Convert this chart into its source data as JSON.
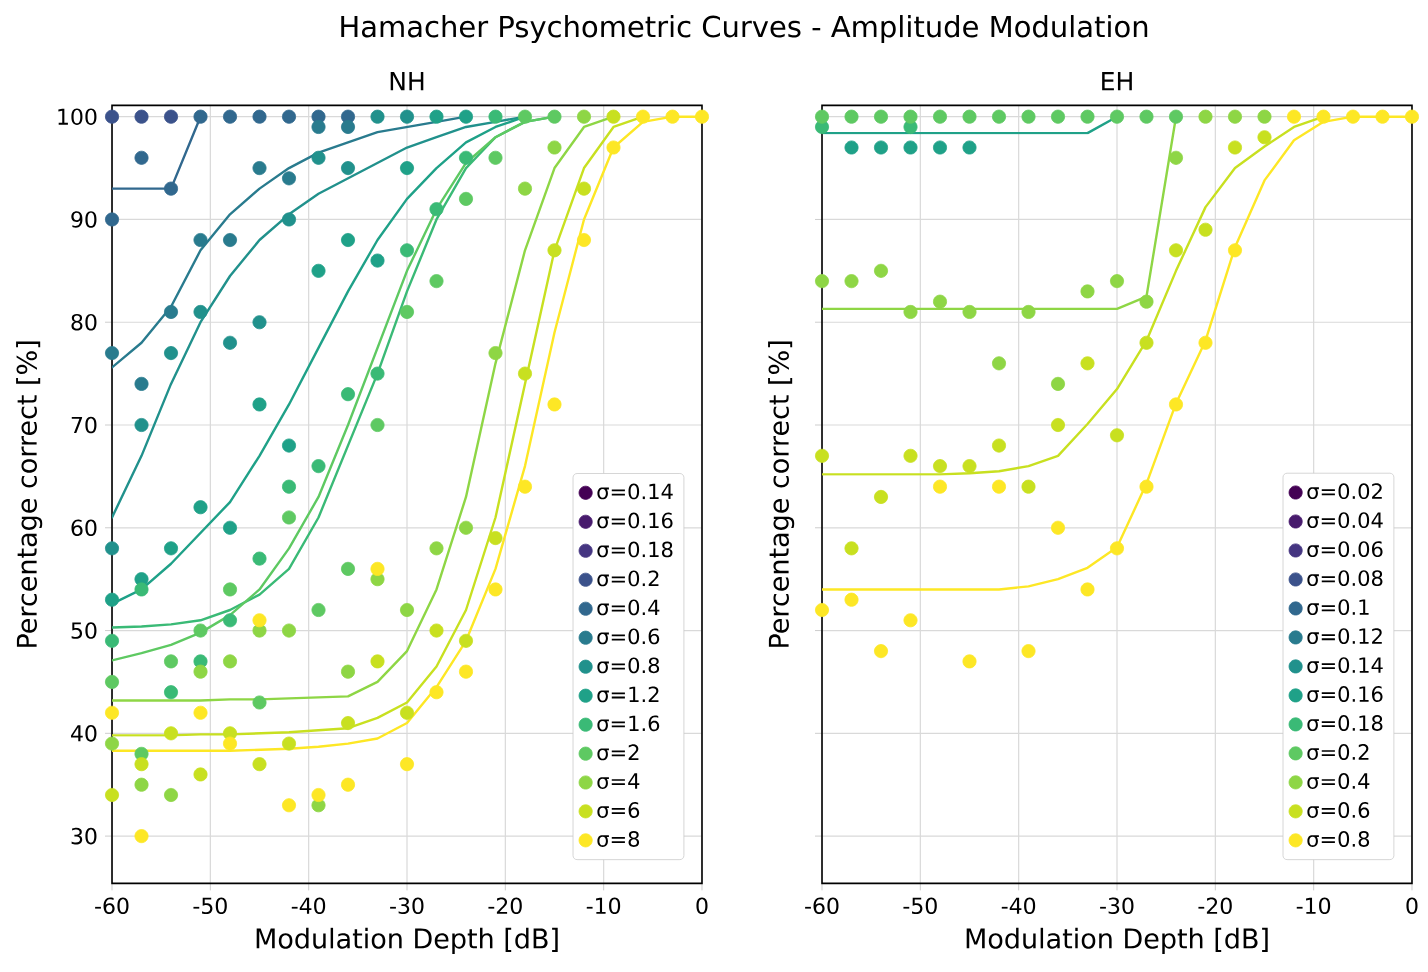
{
  "chart_data": [
    {
      "type": "scatter",
      "title": "Hamacher Psychometric Curves - Amplitude Modulation",
      "subtitle": "NH",
      "xlabel": "Modulation Depth [dB]",
      "ylabel": "Percentage correct [%]",
      "x": [
        -60,
        -57,
        -54,
        -51,
        -48,
        -45,
        -42,
        -39,
        -36,
        -33,
        -30,
        -27,
        -24,
        -21,
        -18,
        -15,
        -12,
        -9,
        -6,
        -3,
        0
      ],
      "xlim": [
        -60,
        0
      ],
      "ylim": [
        25.4,
        101.1
      ],
      "xticks": [
        -60,
        -50,
        -40,
        -30,
        -20,
        -10,
        0
      ],
      "yticks": [
        30,
        40,
        50,
        60,
        70,
        80,
        90,
        100
      ],
      "grid": true,
      "legend": "bottom right",
      "marker": "circle",
      "series": [
        {
          "type": "line",
          "marker": "none",
          "color": "#31688e",
          "values": [
            93,
            93,
            93,
            100,
            null,
            null,
            null,
            null,
            null,
            null,
            null,
            null,
            null,
            null,
            null,
            null,
            null,
            null,
            null,
            null,
            null
          ]
        },
        {
          "type": "line",
          "marker": "none",
          "color": "#297b8e",
          "values": [
            75.6,
            78,
            81.5,
            87,
            90.5,
            93,
            95,
            96.5,
            97.5,
            98.5,
            99,
            99.5,
            100,
            null,
            null,
            null,
            null,
            null,
            null,
            null,
            null
          ]
        },
        {
          "type": "line",
          "marker": "none",
          "color": "#21918c",
          "values": [
            61,
            67,
            74,
            80,
            84.5,
            88,
            90.5,
            92.5,
            94,
            95.5,
            97,
            98,
            99,
            99.5,
            100,
            null,
            null,
            null,
            null,
            null,
            null
          ]
        },
        {
          "type": "line",
          "marker": "none",
          "color": "#1fa188",
          "values": [
            52.6,
            54,
            56.5,
            59.5,
            62.5,
            67,
            72,
            77.5,
            83,
            88,
            92,
            95,
            97.5,
            99,
            100,
            null,
            null,
            null,
            null,
            null,
            null
          ]
        },
        {
          "type": "line",
          "marker": "none",
          "color": "#3aba76",
          "values": [
            50.3,
            50.4,
            50.6,
            51,
            52,
            53.5,
            56,
            61,
            68,
            75,
            83,
            90,
            95,
            98,
            99.5,
            100,
            null,
            null,
            null,
            null,
            null
          ]
        },
        {
          "type": "line",
          "marker": "none",
          "color": "#5ec962",
          "values": [
            47.1,
            47.8,
            48.6,
            49.8,
            51.5,
            54,
            58,
            63,
            70,
            77.5,
            85,
            91,
            95.5,
            98,
            99.5,
            100,
            null,
            null,
            null,
            null,
            null
          ]
        },
        {
          "type": "line",
          "marker": "none",
          "color": "#8ed645",
          "values": [
            43.2,
            43.2,
            43.2,
            43.2,
            43.3,
            43.3,
            43.4,
            43.5,
            43.6,
            45,
            48,
            54,
            63,
            76,
            87,
            95,
            99,
            100,
            null,
            null,
            null
          ]
        },
        {
          "type": "line",
          "marker": "none",
          "color": "#c8e020",
          "values": [
            39.8,
            39.8,
            39.8,
            39.9,
            39.9,
            40,
            40.1,
            40.3,
            40.5,
            41.5,
            43,
            46.5,
            52,
            61,
            74,
            87,
            95,
            99,
            100,
            null,
            null
          ]
        },
        {
          "type": "line",
          "marker": "none",
          "color": "#fde725",
          "values": [
            38.3,
            38.3,
            38.3,
            38.3,
            38.3,
            38.4,
            38.5,
            38.7,
            39,
            39.5,
            41,
            44.5,
            49,
            56,
            66,
            79,
            90,
            97,
            99.5,
            100,
            100
          ]
        },
        {
          "name": "σ=0.14",
          "color": "#440154",
          "values": [
            null,
            null,
            null,
            null,
            null,
            null,
            null,
            null,
            null,
            null,
            null,
            null,
            null,
            null,
            null,
            null,
            null,
            null,
            null,
            null,
            null
          ]
        },
        {
          "name": "σ=0.16",
          "color": "#481b6d",
          "values": [
            null,
            null,
            null,
            null,
            null,
            null,
            null,
            null,
            null,
            null,
            null,
            null,
            null,
            null,
            null,
            null,
            null,
            null,
            null,
            null,
            null
          ]
        },
        {
          "name": "σ=0.18",
          "color": "#453581",
          "values": [
            null,
            null,
            null,
            null,
            null,
            null,
            null,
            null,
            null,
            null,
            null,
            null,
            null,
            null,
            null,
            null,
            null,
            null,
            null,
            null,
            null
          ]
        },
        {
          "name": "σ=0.2",
          "color": "#3b528b",
          "values": [
            100,
            100,
            100,
            null,
            null,
            null,
            null,
            null,
            null,
            null,
            null,
            null,
            null,
            null,
            null,
            null,
            null,
            null,
            null,
            null,
            null
          ]
        },
        {
          "name": "σ=0.4",
          "color": "#31688e",
          "values": [
            90,
            96,
            93,
            100,
            100,
            100,
            100,
            100,
            100,
            null,
            null,
            null,
            null,
            null,
            null,
            null,
            null,
            null,
            null,
            null,
            null
          ]
        },
        {
          "name": "σ=0.6",
          "color": "#297b8e",
          "values": [
            77,
            74,
            81,
            88,
            88,
            95,
            94,
            99,
            99,
            null,
            null,
            null,
            null,
            null,
            null,
            null,
            null,
            null,
            null,
            null,
            null
          ]
        },
        {
          "name": "σ=0.8",
          "color": "#21918c",
          "values": [
            58,
            70,
            77,
            81,
            78,
            80,
            90,
            96,
            95,
            100,
            100,
            null,
            null,
            null,
            null,
            null,
            null,
            null,
            null,
            null,
            null
          ]
        },
        {
          "name": "σ=1.2",
          "color": "#1fa188",
          "values": [
            53,
            55,
            58,
            62,
            60,
            72,
            68,
            85,
            88,
            86,
            95,
            100,
            100,
            null,
            null,
            null,
            null,
            null,
            null,
            null,
            null
          ]
        },
        {
          "name": "σ=1.6",
          "color": "#3aba76",
          "values": [
            49,
            54,
            44,
            47,
            51,
            57,
            64,
            66,
            73,
            75,
            87,
            91,
            96,
            100,
            null,
            null,
            null,
            null,
            null,
            null,
            null
          ]
        },
        {
          "name": "σ=2",
          "color": "#5ec962",
          "values": [
            45,
            38,
            47,
            50,
            54,
            43,
            61,
            52,
            56,
            70,
            81,
            84,
            92,
            96,
            100,
            100,
            null,
            null,
            null,
            null,
            null
          ]
        },
        {
          "name": "σ=4",
          "color": "#8ed645",
          "values": [
            39,
            35,
            34,
            46,
            47,
            50,
            50,
            33,
            46,
            55,
            52,
            58,
            60,
            77,
            93,
            97,
            100,
            null,
            null,
            null,
            null
          ]
        },
        {
          "name": "σ=6",
          "color": "#c8e020",
          "values": [
            34,
            37,
            40,
            36,
            40,
            37,
            39,
            null,
            41,
            47,
            42,
            50,
            49,
            59,
            75,
            87,
            93,
            100,
            null,
            null,
            null
          ]
        },
        {
          "name": "σ=8",
          "color": "#fde725",
          "values": [
            42,
            30,
            null,
            42,
            39,
            51,
            33,
            34,
            35,
            56,
            37,
            44,
            46,
            54,
            64,
            72,
            88,
            97,
            100,
            100,
            100
          ]
        }
      ]
    },
    {
      "type": "scatter",
      "subtitle": "EH",
      "xlabel": "Modulation Depth [dB]",
      "ylabel": "Percentage correct [%]",
      "x": [
        -60,
        -57,
        -54,
        -51,
        -48,
        -45,
        -42,
        -39,
        -36,
        -33,
        -30,
        -27,
        -24,
        -21,
        -18,
        -15,
        -12,
        -9,
        -6,
        -3,
        0
      ],
      "xlim": [
        -60,
        0
      ],
      "ylim": [
        25.4,
        101.1
      ],
      "xticks": [
        -60,
        -50,
        -40,
        -30,
        -20,
        -10,
        0
      ],
      "yticks": [
        30,
        40,
        50,
        60,
        70,
        80,
        90,
        100
      ],
      "grid": true,
      "legend": "bottom right",
      "marker": "circle",
      "tick_labels": "x",
      "series": [
        {
          "type": "line",
          "marker": "none",
          "color": "#1fa188",
          "values": [
            98.4,
            98.4,
            98.4,
            98.4,
            98.4,
            98.4,
            98.4,
            98.4,
            98.4,
            98.4,
            100,
            null,
            null,
            null,
            null,
            null,
            null,
            null,
            null,
            null,
            null
          ]
        },
        {
          "type": "line",
          "marker": "none",
          "color": "#8ed645",
          "values": [
            81.3,
            81.3,
            81.3,
            81.3,
            81.3,
            81.3,
            81.3,
            81.3,
            81.3,
            81.3,
            81.3,
            82.5,
            100,
            null,
            null,
            null,
            null,
            null,
            null,
            null,
            null
          ]
        },
        {
          "type": "line",
          "marker": "none",
          "color": "#c8e020",
          "values": [
            65.2,
            65.2,
            65.2,
            65.2,
            65.2,
            65.3,
            65.5,
            66,
            67,
            70.1,
            73.5,
            78.2,
            85,
            91.2,
            95,
            97.1,
            99,
            100,
            null,
            null,
            null
          ]
        },
        {
          "type": "line",
          "marker": "none",
          "color": "#fde725",
          "values": [
            54,
            54,
            54,
            54,
            54,
            54,
            54,
            54.3,
            55,
            56.1,
            58.1,
            64.3,
            72.1,
            78.2,
            87.3,
            93.8,
            97.7,
            99.5,
            100,
            100,
            100
          ]
        },
        {
          "name": "σ=0.02",
          "color": "#440154",
          "values": [
            null,
            null,
            null,
            null,
            null,
            null,
            null,
            null,
            null,
            null,
            null,
            null,
            null,
            null,
            null,
            null,
            null,
            null,
            null,
            null,
            null
          ]
        },
        {
          "name": "σ=0.04",
          "color": "#481b6d",
          "values": [
            null,
            null,
            null,
            null,
            null,
            null,
            null,
            null,
            null,
            null,
            null,
            null,
            null,
            null,
            null,
            null,
            null,
            null,
            null,
            null,
            null
          ]
        },
        {
          "name": "σ=0.06",
          "color": "#453581",
          "values": [
            null,
            null,
            null,
            null,
            null,
            null,
            null,
            null,
            null,
            null,
            null,
            null,
            null,
            null,
            null,
            null,
            null,
            null,
            null,
            null,
            null
          ]
        },
        {
          "name": "σ=0.08",
          "color": "#3b528b",
          "values": [
            null,
            null,
            null,
            null,
            null,
            null,
            null,
            null,
            null,
            null,
            null,
            null,
            null,
            null,
            null,
            null,
            null,
            null,
            null,
            null,
            null
          ]
        },
        {
          "name": "σ=0.1",
          "color": "#31688e",
          "values": [
            null,
            null,
            null,
            null,
            null,
            null,
            null,
            null,
            null,
            null,
            null,
            null,
            null,
            null,
            null,
            null,
            null,
            null,
            null,
            null,
            null
          ]
        },
        {
          "name": "σ=0.12",
          "color": "#297b8e",
          "values": [
            null,
            null,
            null,
            null,
            null,
            null,
            null,
            null,
            null,
            null,
            null,
            null,
            null,
            null,
            null,
            null,
            null,
            null,
            null,
            null,
            null
          ]
        },
        {
          "name": "σ=0.14",
          "color": "#21918c",
          "values": [
            null,
            null,
            null,
            null,
            null,
            null,
            null,
            null,
            null,
            null,
            null,
            null,
            null,
            null,
            null,
            null,
            null,
            null,
            null,
            null,
            null
          ]
        },
        {
          "name": "σ=0.16",
          "color": "#1fa188",
          "values": [
            null,
            97,
            97,
            97,
            97,
            97,
            null,
            null,
            null,
            null,
            null,
            null,
            null,
            null,
            null,
            null,
            null,
            null,
            null,
            null,
            null
          ]
        },
        {
          "name": "σ=0.18",
          "color": "#3aba76",
          "values": [
            99,
            null,
            null,
            99,
            null,
            null,
            null,
            null,
            null,
            null,
            null,
            null,
            null,
            null,
            null,
            null,
            null,
            null,
            null,
            null,
            null
          ]
        },
        {
          "name": "σ=0.2",
          "color": "#5ec962",
          "values": [
            100,
            100,
            100,
            100,
            100,
            100,
            100,
            100,
            100,
            100,
            100,
            100,
            100,
            null,
            null,
            null,
            null,
            null,
            null,
            null,
            null
          ]
        },
        {
          "name": "σ=0.4",
          "color": "#8ed645",
          "values": [
            84,
            84,
            85,
            81,
            82,
            81,
            76,
            81,
            74,
            83,
            84,
            82,
            96,
            100,
            100,
            100,
            null,
            null,
            null,
            null,
            null
          ]
        },
        {
          "name": "σ=0.6",
          "color": "#c8e020",
          "values": [
            67,
            58,
            63,
            67,
            66,
            66,
            68,
            64,
            70,
            76,
            69,
            78,
            87,
            89,
            97,
            98,
            null,
            null,
            null,
            null,
            null
          ]
        },
        {
          "name": "σ=0.8",
          "color": "#fde725",
          "values": [
            52,
            53,
            48,
            51,
            64,
            47,
            64,
            48,
            60,
            54,
            58,
            64,
            72,
            78,
            87,
            null,
            100,
            100,
            100,
            100,
            100
          ]
        }
      ]
    }
  ]
}
